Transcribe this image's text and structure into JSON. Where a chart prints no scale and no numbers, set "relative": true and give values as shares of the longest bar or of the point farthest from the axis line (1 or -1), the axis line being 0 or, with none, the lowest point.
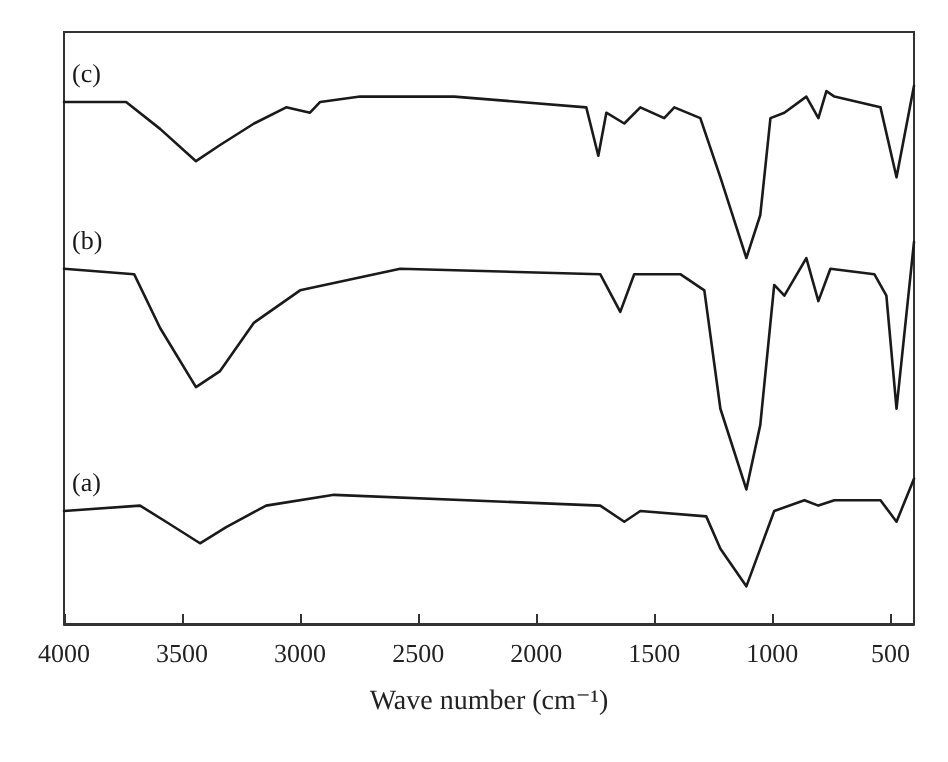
{
  "chart_data": {
    "type": "line",
    "relative": true,
    "xlabel": "Wave number (cm⁻¹)",
    "xlim": [
      4000,
      400
    ],
    "xticks": [
      4000,
      3500,
      3000,
      2500,
      2000,
      1500,
      1000,
      500
    ],
    "grid": false,
    "legend": false,
    "marker": "none",
    "line_style": "solid",
    "tick_labels": "x",
    "series": [
      {
        "name": "(a)",
        "color": "#1a1a1a",
        "x": [
          4000,
          3678,
          3568,
          3424,
          3313,
          3144,
          2856,
          1729,
          1627,
          1559,
          1280,
          1220,
          1110,
          1051,
          992,
          864,
          805,
          737,
          542,
          474,
          400
        ],
        "values": [
          0.21,
          0.22,
          0.19,
          0.15,
          0.18,
          0.22,
          0.24,
          0.22,
          0.19,
          0.21,
          0.2,
          0.14,
          0.07,
          0.14,
          0.21,
          0.23,
          0.22,
          0.23,
          0.23,
          0.19,
          0.27
        ]
      },
      {
        "name": "(b)",
        "color": "#1a1a1a",
        "x": [
          4000,
          3703,
          3593,
          3441,
          3339,
          3195,
          3000,
          2576,
          1729,
          1644,
          1585,
          1390,
          1288,
          1220,
          1110,
          1051,
          992,
          949,
          856,
          805,
          754,
          568,
          517,
          474,
          400
        ],
        "values": [
          0.66,
          0.65,
          0.55,
          0.44,
          0.47,
          0.56,
          0.62,
          0.66,
          0.65,
          0.58,
          0.65,
          0.65,
          0.62,
          0.4,
          0.25,
          0.37,
          0.63,
          0.61,
          0.68,
          0.6,
          0.66,
          0.65,
          0.61,
          0.4,
          0.71
        ]
      },
      {
        "name": "(c)",
        "color": "#1a1a1a",
        "x": [
          4000,
          3737,
          3593,
          3441,
          3339,
          3195,
          3059,
          2958,
          2915,
          2746,
          2347,
          1788,
          1737,
          1703,
          1627,
          1559,
          1458,
          1415,
          1305,
          1220,
          1110,
          1051,
          1008,
          949,
          856,
          805,
          771,
          737,
          542,
          474,
          400
        ],
        "values": [
          0.97,
          0.97,
          0.92,
          0.86,
          0.89,
          0.93,
          0.96,
          0.95,
          0.97,
          0.98,
          0.98,
          0.96,
          0.87,
          0.95,
          0.93,
          0.96,
          0.94,
          0.96,
          0.94,
          0.83,
          0.68,
          0.76,
          0.94,
          0.95,
          0.98,
          0.94,
          0.99,
          0.98,
          0.96,
          0.83,
          1.0
        ]
      }
    ]
  }
}
